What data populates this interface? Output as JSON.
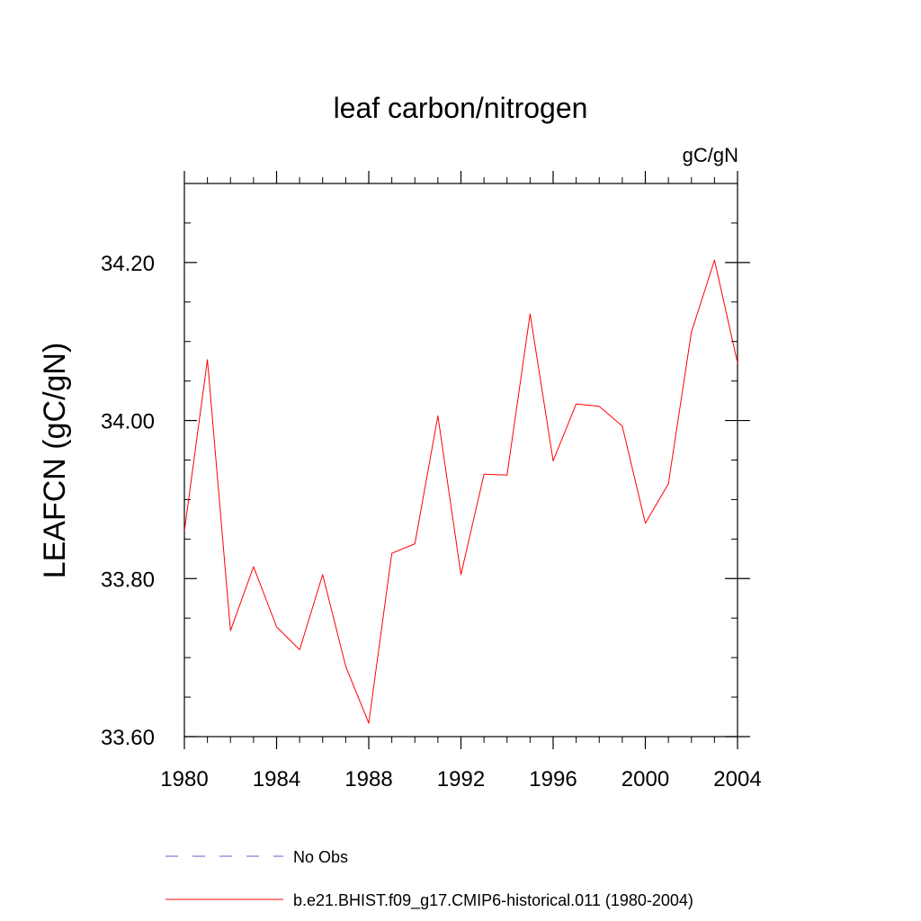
{
  "chart_data": {
    "type": "line",
    "title": "leaf carbon/nitrogen",
    "units_label": "gC/gN",
    "ylabel": "LEAFCN  (gC/gN)",
    "xlim": [
      1980,
      2004
    ],
    "ylim": [
      33.6,
      34.3
    ],
    "x_ticks": [
      1980,
      1984,
      1988,
      1992,
      1996,
      2000,
      2004
    ],
    "x_tick_labels": [
      "1980",
      "1984",
      "1988",
      "1992",
      "1996",
      "2000",
      "2004"
    ],
    "y_ticks": [
      33.6,
      33.8,
      34.0,
      34.2
    ],
    "y_tick_labels": [
      "33.60",
      "33.80",
      "34.00",
      "34.20"
    ],
    "y_minor_step": 0.05,
    "x_minor_step": 1,
    "grid": false,
    "legend_position": "bottom",
    "series": [
      {
        "name": "b.e21.BHIST.f09_g17.CMIP6-historical.011 (1980-2004)",
        "color": "#ff0000",
        "style": "solid",
        "x": [
          1980,
          1981,
          1982,
          1983,
          1984,
          1985,
          1986,
          1987,
          1988,
          1989,
          1990,
          1991,
          1992,
          1993,
          1994,
          1995,
          1996,
          1997,
          1998,
          1999,
          2000,
          2001,
          2002,
          2003,
          2004
        ],
        "y": [
          33.86,
          34.077,
          33.734,
          33.815,
          33.739,
          33.71,
          33.805,
          33.689,
          33.617,
          33.832,
          33.844,
          34.006,
          33.805,
          33.932,
          33.931,
          34.135,
          33.949,
          34.021,
          34.018,
          33.993,
          33.87,
          33.92,
          34.112,
          34.203,
          34.073
        ]
      }
    ],
    "legend": [
      {
        "label": "No Obs",
        "color": "#6a5acd",
        "style": "dashed"
      },
      {
        "label": "b.e21.BHIST.f09_g17.CMIP6-historical.011 (1980-2004)",
        "color": "#ff0000",
        "style": "solid"
      }
    ]
  }
}
